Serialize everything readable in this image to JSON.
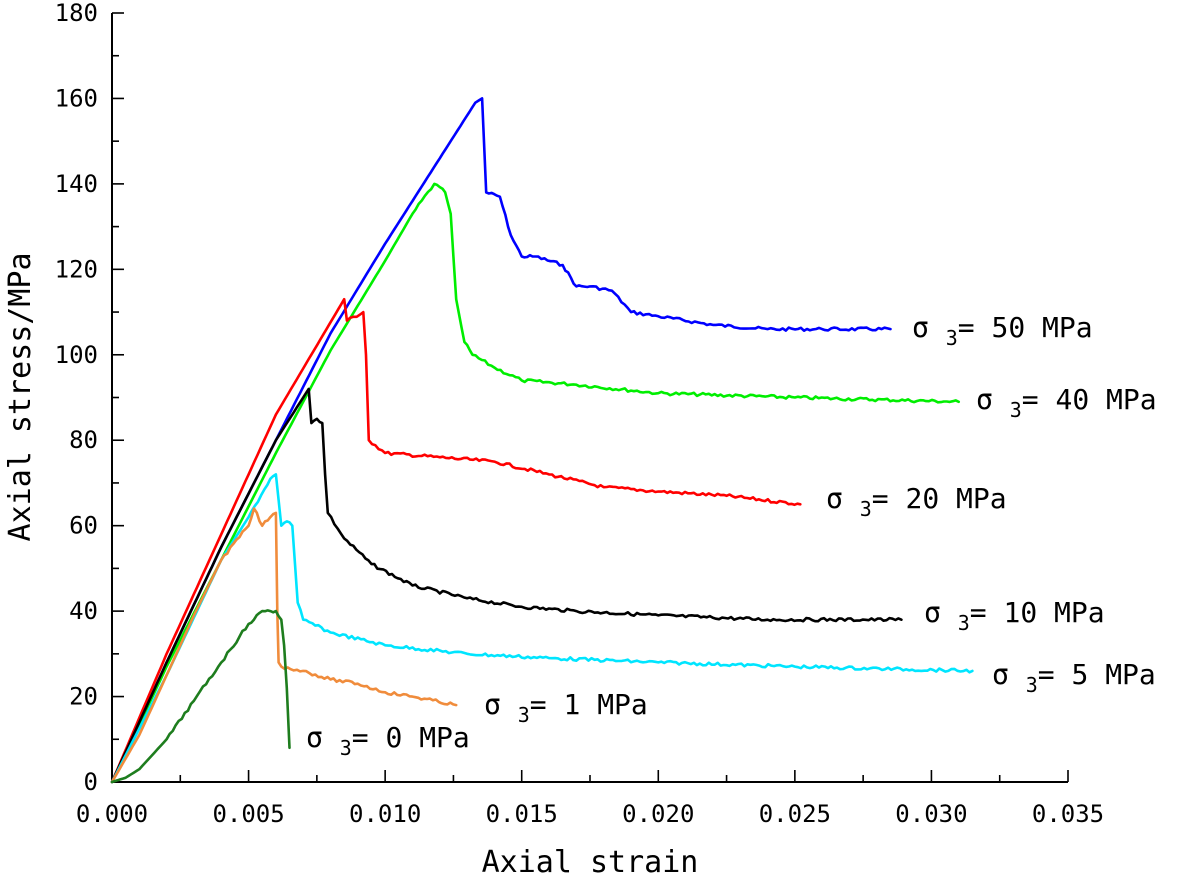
{
  "chart_data": {
    "type": "line",
    "title": "",
    "xlabel": "Axial strain",
    "ylabel": "Axial stress/MPa",
    "xlim": [
      0,
      0.035
    ],
    "ylim": [
      0,
      180
    ],
    "x_ticks": [
      0,
      0.005,
      0.01,
      0.015,
      0.02,
      0.025,
      0.03,
      0.035
    ],
    "x_tick_labels": [
      "0.000",
      "0.005",
      "0.010",
      "0.015",
      "0.020",
      "0.025",
      "0.030",
      "0.035"
    ],
    "y_ticks": [
      0,
      20,
      40,
      60,
      80,
      100,
      120,
      140,
      160,
      180
    ],
    "y_tick_labels": [
      "0",
      "20",
      "40",
      "60",
      "80",
      "100",
      "120",
      "140",
      "160",
      "180"
    ],
    "grid": false,
    "series": [
      {
        "name": "σ3= 50 MPa",
        "sigma_symbol": "σ",
        "sigma_sub": "3",
        "sigma_value": "= 50 MPa",
        "color": "#0000ff",
        "x": [
          0,
          0.002,
          0.004,
          0.006,
          0.008,
          0.01,
          0.012,
          0.0133,
          0.01355,
          0.0137,
          0.0142,
          0.0146,
          0.015,
          0.0155,
          0.0165,
          0.017,
          0.0175,
          0.0183,
          0.019,
          0.02,
          0.022,
          0.024,
          0.026,
          0.0285
        ],
        "y": [
          0,
          28,
          55,
          80,
          105,
          126,
          146,
          159,
          160,
          138,
          137,
          128,
          123,
          123,
          121,
          116,
          116,
          115,
          110,
          109,
          107,
          106,
          106,
          106
        ]
      },
      {
        "name": "σ3= 40 MPa",
        "sigma_symbol": "σ",
        "sigma_sub": "3",
        "sigma_value": "= 40 MPa",
        "color": "#00ee00",
        "x": [
          0,
          0.002,
          0.004,
          0.006,
          0.008,
          0.01,
          0.011,
          0.0118,
          0.0122,
          0.0124,
          0.0126,
          0.0129,
          0.0132,
          0.014,
          0.015,
          0.017,
          0.02,
          0.025,
          0.031
        ],
        "y": [
          0,
          27,
          52,
          77,
          101,
          122,
          133,
          140,
          138,
          133,
          113,
          103,
          100,
          97,
          94,
          93,
          91,
          90,
          89
        ]
      },
      {
        "name": "σ3= 20 MPa",
        "sigma_symbol": "σ",
        "sigma_sub": "3",
        "sigma_value": "= 20 MPa",
        "color": "#ff0000",
        "x": [
          0,
          0.002,
          0.004,
          0.006,
          0.0085,
          0.0086,
          0.0092,
          0.0093,
          0.0094,
          0.01,
          0.012,
          0.014,
          0.016,
          0.018,
          0.02,
          0.0225,
          0.0252
        ],
        "y": [
          0,
          30,
          58,
          86,
          113,
          108,
          110,
          100,
          80,
          77,
          76,
          75,
          72,
          69,
          68,
          67,
          65
        ]
      },
      {
        "name": "σ3= 10 MPa",
        "sigma_symbol": "σ",
        "sigma_sub": "3",
        "sigma_value": "= 10 MPa",
        "color": "#000000",
        "x": [
          0,
          0.002,
          0.004,
          0.006,
          0.0072,
          0.0073,
          0.0075,
          0.0077,
          0.0078,
          0.0079,
          0.0085,
          0.0095,
          0.011,
          0.013,
          0.015,
          0.017,
          0.02,
          0.024,
          0.0289
        ],
        "y": [
          0,
          28,
          55,
          80,
          92,
          84,
          85,
          84,
          72,
          63,
          57,
          51,
          46,
          43,
          41,
          40,
          39,
          38,
          38
        ]
      },
      {
        "name": "σ3= 5 MPa",
        "sigma_symbol": "σ",
        "sigma_sub": "3",
        "sigma_value": "= 5 MPa",
        "color": "#00e5ff",
        "x": [
          0,
          0.002,
          0.004,
          0.005,
          0.0058,
          0.006,
          0.0062,
          0.0064,
          0.0066,
          0.0068,
          0.007,
          0.008,
          0.01,
          0.013,
          0.016,
          0.02,
          0.025,
          0.0315
        ],
        "y": [
          0,
          25,
          52,
          62,
          71,
          72,
          60,
          61,
          60,
          42,
          38,
          35,
          32,
          30,
          29,
          28,
          27,
          26
        ]
      },
      {
        "name": "σ3= 1 MPa",
        "sigma_symbol": "σ",
        "sigma_sub": "3",
        "sigma_value": "= 1 MPa",
        "color": "#f08c3c",
        "x": [
          0,
          0.001,
          0.002,
          0.003,
          0.004,
          0.005,
          0.0052,
          0.0055,
          0.0058,
          0.006,
          0.00605,
          0.0061,
          0.0062,
          0.007,
          0.008,
          0.009,
          0.01,
          0.011,
          0.0126
        ],
        "y": [
          0,
          11,
          25,
          39,
          52,
          60,
          64,
          60,
          62,
          63,
          40,
          28,
          27,
          26,
          24,
          23,
          21,
          20,
          18
        ]
      },
      {
        "name": "σ3= 0 MPa",
        "sigma_symbol": "σ",
        "sigma_sub": "3",
        "sigma_value": "= 0 MPa",
        "color": "#1e7d1e",
        "x": [
          0,
          0.0005,
          0.001,
          0.002,
          0.003,
          0.004,
          0.005,
          0.0055,
          0.0058,
          0.006,
          0.0062,
          0.0063,
          0.0064,
          0.0065
        ],
        "y": [
          0,
          1,
          3,
          10,
          19,
          28,
          37,
          40,
          40,
          40,
          38,
          32,
          22,
          8
        ]
      }
    ]
  }
}
